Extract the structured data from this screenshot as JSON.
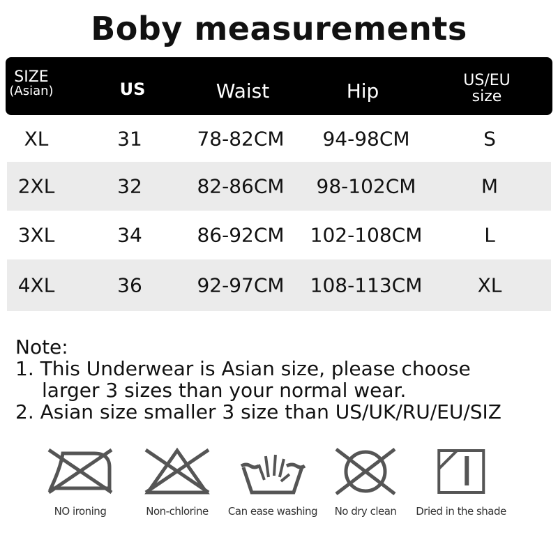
{
  "title": "Boby measurements",
  "table": {
    "headers": [
      {
        "line1": "SIZE",
        "line2": "(Asian)"
      },
      {
        "line1": "US",
        "line2": ""
      },
      {
        "line1": "Waist",
        "line2": ""
      },
      {
        "line1": "Hip",
        "line2": ""
      },
      {
        "line1": "US/EU",
        "line2": "size"
      }
    ],
    "rows": [
      [
        "XL",
        "31",
        "78-82CM",
        "94-98CM",
        "S"
      ],
      [
        "2XL",
        "32",
        "82-86CM",
        "98-102CM",
        "M"
      ],
      [
        "3XL",
        "34",
        "86-92CM",
        "102-108CM",
        "L"
      ],
      [
        "4XL",
        "36",
        "92-97CM",
        "108-113CM",
        "XL"
      ]
    ]
  },
  "notes": {
    "heading": "Note:",
    "line1": "1. This Underwear is Asian size, please choose",
    "line1b": "larger 3 sizes than your normal wear.",
    "line2": "2. Asian size smaller 3 size than US/UK/RU/EU/SIZ"
  },
  "care_icons": [
    {
      "icon": "no-ironing-icon",
      "label": "NO ironing"
    },
    {
      "icon": "no-bleach-icon",
      "label": "Non-chlorine"
    },
    {
      "icon": "hand-wash-icon",
      "label": "Can ease washing"
    },
    {
      "icon": "no-dry-clean-icon",
      "label": "No dry clean"
    },
    {
      "icon": "dry-in-shade-icon",
      "label": "Dried in the shade"
    }
  ]
}
